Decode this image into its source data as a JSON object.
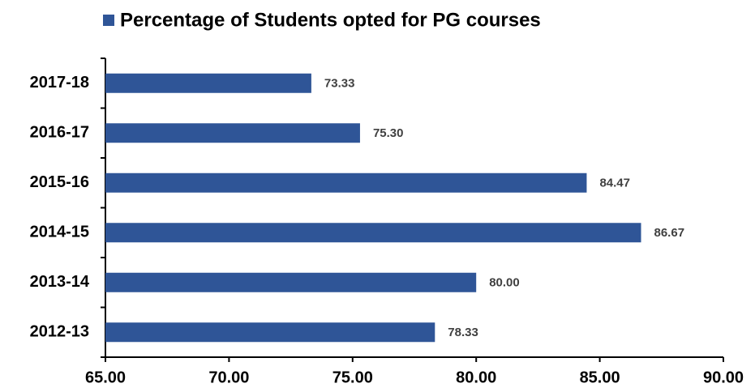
{
  "chart_data": {
    "type": "bar",
    "orientation": "horizontal",
    "categories": [
      "2017-18",
      "2016-17",
      "2015-16",
      "2014-15",
      "2013-14",
      "2012-13"
    ],
    "series": [
      {
        "name": "Percentage of Students opted for PG courses",
        "color": "#2f5597",
        "values": [
          73.33,
          75.3,
          84.47,
          86.67,
          80,
          78.33
        ],
        "value_labels": [
          "73.33",
          "75.30",
          "84.47",
          "86.67",
          "80.00",
          "78.33"
        ]
      }
    ],
    "xlim": [
      65,
      90
    ],
    "xticks": [
      {
        "value": 65,
        "label": "65.00"
      },
      {
        "value": 70,
        "label": "70.00"
      },
      {
        "value": 75,
        "label": "75.00"
      },
      {
        "value": 80,
        "label": "80.00"
      },
      {
        "value": 85,
        "label": "85.00"
      },
      {
        "value": 90,
        "label": "90.00"
      }
    ],
    "legend": "top"
  }
}
